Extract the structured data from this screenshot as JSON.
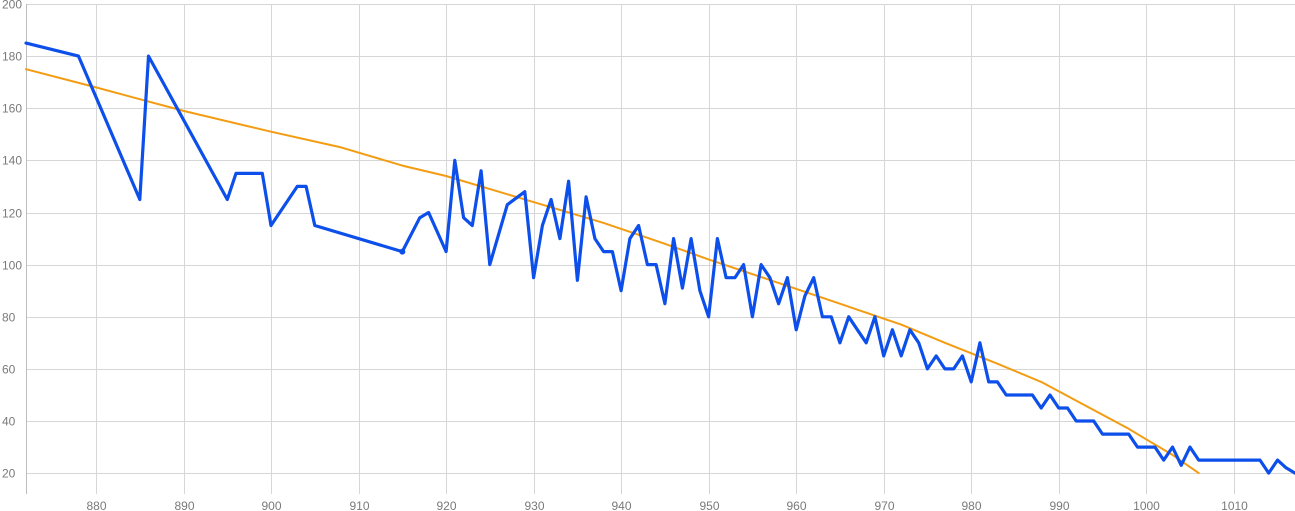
{
  "chart_data": {
    "type": "line",
    "title": "",
    "xlabel": "",
    "ylabel": "",
    "xlim": [
      872,
      1017
    ],
    "ylim": [
      12,
      200
    ],
    "grid": true,
    "x_ticks": [
      880,
      890,
      900,
      910,
      920,
      930,
      940,
      950,
      960,
      970,
      980,
      990,
      1000,
      1010
    ],
    "y_ticks": [
      20,
      40,
      60,
      80,
      100,
      120,
      140,
      160,
      180,
      200
    ],
    "series": [
      {
        "color": "#0d4fea",
        "marker_at_x": 915,
        "x": [
          872,
          878,
          885,
          886,
          895,
          896,
          899,
          900,
          903,
          904,
          905,
          915,
          917,
          918,
          920,
          921,
          922,
          923,
          924,
          925,
          927,
          929,
          930,
          931,
          932,
          933,
          934,
          935,
          936,
          937,
          938,
          939,
          940,
          941,
          942,
          943,
          944,
          945,
          946,
          947,
          948,
          949,
          950,
          951,
          952,
          953,
          954,
          955,
          956,
          957,
          958,
          959,
          960,
          961,
          962,
          963,
          964,
          965,
          966,
          967,
          968,
          969,
          970,
          971,
          972,
          973,
          974,
          975,
          976,
          977,
          978,
          979,
          980,
          981,
          982,
          983,
          984,
          985,
          986,
          987,
          988,
          989,
          990,
          991,
          992,
          993,
          994,
          995,
          996,
          997,
          998,
          999,
          1000,
          1001,
          1002,
          1003,
          1004,
          1005,
          1006,
          1007,
          1008,
          1009,
          1010,
          1011,
          1012,
          1013,
          1014,
          1015,
          1016,
          1017
        ],
        "values": [
          185,
          180,
          125,
          180,
          125,
          135,
          135,
          115,
          130,
          130,
          115,
          105,
          118,
          120,
          105,
          140,
          118,
          115,
          136,
          100,
          123,
          128,
          95,
          115,
          125,
          110,
          132,
          94,
          126,
          110,
          105,
          105,
          90,
          110,
          115,
          100,
          100,
          85,
          110,
          91,
          110,
          90,
          80,
          110,
          95,
          95,
          100,
          80,
          100,
          95,
          85,
          95,
          75,
          88,
          95,
          80,
          80,
          70,
          80,
          75,
          70,
          80,
          65,
          75,
          65,
          75,
          70,
          60,
          65,
          60,
          60,
          65,
          55,
          70,
          55,
          55,
          50,
          50,
          50,
          50,
          45,
          50,
          45,
          45,
          40,
          40,
          40,
          35,
          35,
          35,
          35,
          30,
          30,
          30,
          25,
          30,
          23,
          30,
          25,
          25,
          25,
          25,
          25,
          25,
          25,
          25,
          20,
          25,
          22,
          20
        ]
      },
      {
        "color": "#f39c12",
        "x": [
          872,
          880,
          890,
          900,
          908,
          915,
          920,
          930,
          938,
          945,
          950,
          958,
          965,
          972,
          977,
          983,
          988,
          993,
          998,
          1000,
          1003,
          1006
        ],
        "values": [
          175,
          168,
          159,
          151,
          145,
          138,
          134,
          124,
          116,
          108,
          102,
          93,
          85,
          77,
          70,
          62,
          55,
          46,
          37,
          33,
          27,
          20
        ]
      }
    ]
  }
}
